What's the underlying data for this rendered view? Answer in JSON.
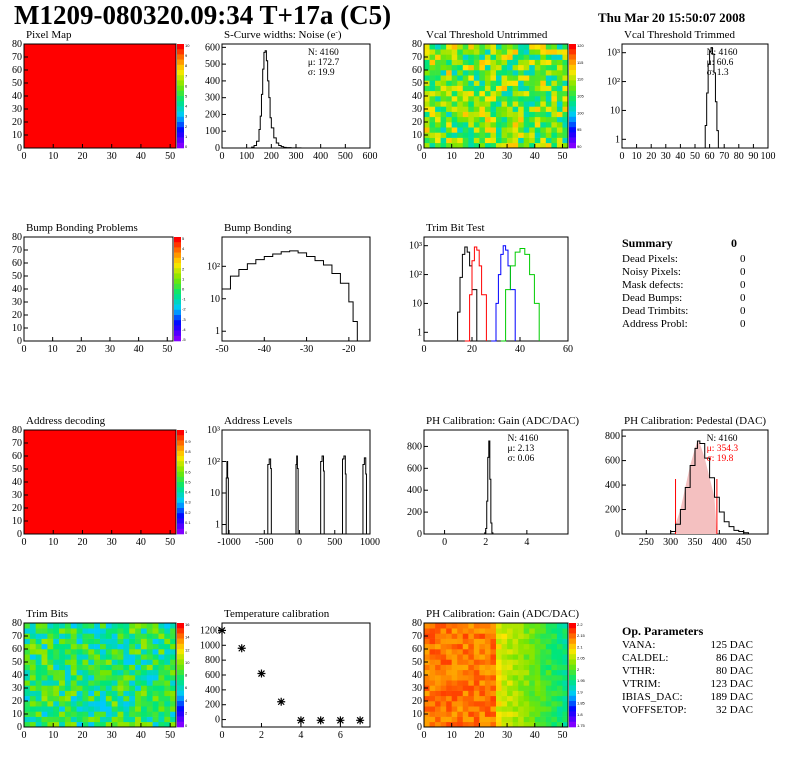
{
  "header": {
    "title": "M1209-080320.09:34 T+17a (C5)",
    "date": "Thu Mar 20 15:50:07 2008"
  },
  "chart_data": [
    {
      "id": "pixel-map",
      "type": "heatmap",
      "title": "Pixel Map",
      "xlim": [
        0,
        52
      ],
      "ylim": [
        0,
        80
      ],
      "xticks": [
        "0",
        "10",
        "20",
        "30",
        "40",
        "50"
      ],
      "yticks": [
        "0",
        "10",
        "20",
        "30",
        "40",
        "50",
        "60",
        "70",
        "80"
      ],
      "fill": "uniform",
      "fill_color": "#ff0000",
      "palette_labels": [
        "10",
        "9",
        "8",
        "7",
        "6",
        "5",
        "4",
        "3",
        "2",
        "1",
        "0"
      ]
    },
    {
      "id": "scurve-widths",
      "type": "line",
      "title": "S-Curve widths: Noise (e",
      "title_suffix": ")",
      "xlim": [
        0,
        600
      ],
      "ylim": [
        0,
        620
      ],
      "xticks": [
        "0",
        "100",
        "200",
        "300",
        "400",
        "500",
        "600"
      ],
      "yticks": [
        "0",
        "100",
        "200",
        "300",
        "400",
        "500",
        "600"
      ],
      "stats": [
        "N: 4160",
        "μ: 172.7",
        "σ: 19.9"
      ],
      "series": [
        {
          "color": "#000000",
          "x": [
            100,
            120,
            130,
            140,
            150,
            155,
            160,
            165,
            170,
            175,
            180,
            185,
            190,
            195,
            200,
            210,
            220,
            230,
            240,
            250,
            260,
            280,
            300,
            320
          ],
          "values": [
            0,
            5,
            15,
            40,
            110,
            190,
            320,
            470,
            570,
            580,
            520,
            400,
            300,
            180,
            120,
            60,
            30,
            15,
            8,
            4,
            2,
            1,
            1,
            0
          ]
        }
      ]
    },
    {
      "id": "vcal-untrimmed",
      "type": "heatmap",
      "title": "Vcal Threshold Untrimmed",
      "xlim": [
        0,
        52
      ],
      "ylim": [
        0,
        80
      ],
      "xticks": [
        "0",
        "10",
        "20",
        "30",
        "40",
        "50"
      ],
      "yticks": [
        "0",
        "10",
        "20",
        "30",
        "40",
        "50",
        "60",
        "70",
        "80"
      ],
      "fill": "noise",
      "palette_labels": [
        "120",
        "115",
        "110",
        "105",
        "100",
        "95",
        "90"
      ]
    },
    {
      "id": "vcal-trimmed",
      "type": "line",
      "title": "Vcal Threshold Trimmed",
      "xlim": [
        0,
        100
      ],
      "ylog": true,
      "ylim": [
        0.5,
        2000
      ],
      "xticks": [
        "0",
        "10",
        "20",
        "30",
        "40",
        "50",
        "60",
        "70",
        "80",
        "90",
        "100"
      ],
      "yticks": [
        "1",
        "10",
        "10²",
        "10³"
      ],
      "stats": [
        "N: 4160",
        "μ: 60.6",
        "σ:  1.3"
      ],
      "series": [
        {
          "color": "#000000",
          "x": [
            56,
            57,
            58,
            59,
            60,
            61,
            62,
            63,
            64,
            65,
            66
          ],
          "values": [
            0.5,
            3,
            40,
            400,
            1100,
            1500,
            900,
            200,
            20,
            2,
            0.5
          ]
        }
      ]
    },
    {
      "id": "bump-problems",
      "type": "heatmap",
      "title": "Bump Bonding Problems",
      "xlim": [
        0,
        52
      ],
      "ylim": [
        0,
        80
      ],
      "xticks": [
        "0",
        "10",
        "20",
        "30",
        "40",
        "50"
      ],
      "yticks": [
        "0",
        "10",
        "20",
        "30",
        "40",
        "50",
        "60",
        "70",
        "80"
      ],
      "fill": "empty",
      "palette_labels": [
        "5",
        "4",
        "3",
        "2",
        "1",
        "0",
        "-1",
        "-2",
        "-3",
        "-4",
        "-5"
      ]
    },
    {
      "id": "bump-bonding",
      "type": "line",
      "title": "Bump Bonding",
      "xlim": [
        -50,
        -15
      ],
      "ylog": true,
      "ylim": [
        0.5,
        800
      ],
      "xticks": [
        "-50",
        "-40",
        "-30",
        "-20"
      ],
      "yticks": [
        "1",
        "10",
        "10²"
      ],
      "series": [
        {
          "color": "#000000",
          "x": [
            -50,
            -48,
            -46,
            -44,
            -42,
            -40,
            -38,
            -36,
            -34,
            -32,
            -30,
            -28,
            -26,
            -24,
            -22,
            -20,
            -19,
            -18
          ],
          "values": [
            20,
            50,
            80,
            120,
            160,
            200,
            240,
            280,
            300,
            260,
            200,
            150,
            110,
            60,
            30,
            8,
            2,
            0.5
          ]
        }
      ]
    },
    {
      "id": "trim-bit-test",
      "type": "line",
      "title": "Trim Bit Test",
      "xlim": [
        0,
        60
      ],
      "ylog": true,
      "ylim": [
        0.5,
        2000
      ],
      "xticks": [
        "0",
        "20",
        "40",
        "60"
      ],
      "yticks": [
        "1",
        "10",
        "10²",
        "10³"
      ],
      "series": [
        {
          "color": "#000000",
          "x": [
            12,
            14,
            15,
            16,
            17,
            18,
            19,
            20,
            22
          ],
          "values": [
            0.5,
            5,
            80,
            500,
            900,
            600,
            200,
            30,
            0.5
          ]
        },
        {
          "color": "#ff0000",
          "x": [
            17,
            19,
            20,
            21,
            22,
            23,
            24,
            26
          ],
          "values": [
            0.5,
            20,
            300,
            900,
            700,
            200,
            20,
            0.5
          ]
        },
        {
          "color": "#0000ff",
          "x": [
            28,
            30,
            31,
            32,
            33,
            34,
            35,
            36,
            38
          ],
          "values": [
            0.5,
            10,
            100,
            500,
            1000,
            700,
            200,
            30,
            0.5
          ]
        },
        {
          "color": "#00cc00",
          "x": [
            32,
            34,
            36,
            38,
            40,
            42,
            44,
            46,
            48
          ],
          "values": [
            0.5,
            30,
            200,
            600,
            800,
            500,
            100,
            10,
            0.5
          ]
        }
      ]
    },
    {
      "id": "address-decoding",
      "type": "heatmap",
      "title": "Address decoding",
      "xlim": [
        0,
        52
      ],
      "ylim": [
        0,
        80
      ],
      "xticks": [
        "0",
        "10",
        "20",
        "30",
        "40",
        "50"
      ],
      "yticks": [
        "0",
        "10",
        "20",
        "30",
        "40",
        "50",
        "60",
        "70",
        "80"
      ],
      "fill": "uniform",
      "fill_color": "#ff0000",
      "palette_labels": [
        "1",
        "0.9",
        "0.8",
        "0.7",
        "0.6",
        "0.5",
        "0.4",
        "0.3",
        "0.2",
        "0.1",
        "0"
      ]
    },
    {
      "id": "address-levels",
      "type": "line",
      "title": "Address Levels",
      "xlim": [
        -1100,
        1000
      ],
      "ylog": true,
      "ylim": [
        0.5,
        1000
      ],
      "xticks": [
        "-1000",
        "-500",
        "0",
        "500",
        "1000"
      ],
      "yticks": [
        "1",
        "10",
        "10²",
        "10³"
      ],
      "series": [
        {
          "color": "#000000",
          "x": [
            -1050,
            -1040,
            -1030,
            -1020,
            -1010,
            -1000,
            -460,
            -450,
            -430,
            -410,
            -400,
            -60,
            -50,
            -40,
            -30,
            -20,
            290,
            300,
            320,
            340,
            350,
            600,
            610,
            630,
            650,
            660,
            880,
            900,
            920,
            940,
            950
          ],
          "values": [
            0.5,
            30,
            100,
            30,
            0.5,
            0.5,
            0.5,
            80,
            120,
            60,
            0.5,
            0.5,
            80,
            150,
            60,
            0.5,
            0.5,
            100,
            150,
            50,
            0.5,
            0.5,
            120,
            150,
            40,
            0.5,
            0.5,
            80,
            130,
            40,
            0.5
          ]
        }
      ]
    },
    {
      "id": "ph-gain",
      "type": "line",
      "title": "PH Calibration: Gain (ADC/DAC)",
      "xlim": [
        -1,
        6
      ],
      "ylim": [
        0,
        950
      ],
      "xticks": [
        "0",
        "2",
        "4"
      ],
      "yticks": [
        "0",
        "200",
        "400",
        "600",
        "800"
      ],
      "stats": [
        "N: 4160",
        "μ: 2.13",
        "σ: 0.06"
      ],
      "series": [
        {
          "color": "#000000",
          "x": [
            1.9,
            1.95,
            2.0,
            2.05,
            2.1,
            2.15,
            2.2,
            2.25,
            2.3,
            2.35
          ],
          "values": [
            0,
            10,
            50,
            300,
            700,
            850,
            500,
            100,
            10,
            0
          ]
        }
      ]
    },
    {
      "id": "ph-pedestal",
      "type": "line",
      "title": "PH Calibration: Pedestal (DAC)",
      "xlim": [
        200,
        500
      ],
      "ylim": [
        0,
        850
      ],
      "xticks": [
        "250",
        "300",
        "350",
        "400",
        "450"
      ],
      "yticks": [
        "0",
        "200",
        "400",
        "600",
        "800"
      ],
      "stats": [
        "N: 4160",
        "μ: 354.3",
        "σ: 19.8"
      ],
      "stat_colors": [
        "#000000",
        "#ff0000",
        "#ff0000"
      ],
      "fit_range": [
        310,
        395
      ],
      "series": [
        {
          "color": "#000000",
          "x": [
            290,
            300,
            310,
            320,
            330,
            340,
            350,
            355,
            360,
            370,
            380,
            390,
            400,
            410,
            420,
            430,
            440,
            450,
            460
          ],
          "values": [
            0,
            20,
            80,
            200,
            380,
            560,
            700,
            760,
            740,
            620,
            460,
            300,
            180,
            100,
            60,
            30,
            20,
            10,
            0
          ]
        }
      ]
    },
    {
      "id": "trim-bits",
      "type": "heatmap",
      "title": "Trim Bits",
      "xlim": [
        0,
        52
      ],
      "ylim": [
        0,
        80
      ],
      "xticks": [
        "0",
        "10",
        "20",
        "30",
        "40",
        "50"
      ],
      "yticks": [
        "0",
        "10",
        "20",
        "30",
        "40",
        "50",
        "60",
        "70",
        "80"
      ],
      "fill": "noise-green",
      "palette_labels": [
        "16",
        "14",
        "12",
        "10",
        "8",
        "6",
        "4",
        "2",
        "0"
      ]
    },
    {
      "id": "temperature-calibration",
      "type": "scatter",
      "title": "Temperature calibration",
      "xlim": [
        0,
        7.5
      ],
      "ylim": [
        -100,
        1300
      ],
      "xticks": [
        "0",
        "2",
        "4",
        "6"
      ],
      "yticks": [
        "0",
        "200",
        "400",
        "600",
        "800",
        "1000",
        "1200"
      ],
      "x": [
        0,
        1,
        2,
        3,
        4,
        5,
        6,
        7
      ],
      "values": [
        1200,
        960,
        620,
        240,
        -10,
        -10,
        -10,
        -10
      ]
    },
    {
      "id": "ph-gain-map",
      "type": "heatmap",
      "title": "PH Calibration: Gain (ADC/DAC)",
      "xlim": [
        0,
        52
      ],
      "ylim": [
        0,
        80
      ],
      "xticks": [
        "0",
        "10",
        "20",
        "30",
        "40",
        "50"
      ],
      "yticks": [
        "0",
        "10",
        "20",
        "30",
        "40",
        "50",
        "60",
        "70",
        "80"
      ],
      "fill": "gradient",
      "palette_labels": [
        "2.2",
        "2.15",
        "2.1",
        "2.05",
        "2",
        "1.95",
        "1.9",
        "1.85",
        "1.8",
        "1.75"
      ]
    }
  ],
  "summary": {
    "title": "Summary",
    "total": "0",
    "rows": [
      {
        "label": "Dead Pixels:",
        "value": "0"
      },
      {
        "label": "Noisy Pixels:",
        "value": "0"
      },
      {
        "label": "Mask defects:",
        "value": "0"
      },
      {
        "label": "Dead Bumps:",
        "value": "0"
      },
      {
        "label": "Dead Trimbits:",
        "value": "0"
      },
      {
        "label": "Address Probl:",
        "value": "0"
      }
    ]
  },
  "op_parameters": {
    "title": "Op. Parameters",
    "rows": [
      {
        "label": "VANA:",
        "value": "125 DAC"
      },
      {
        "label": "CALDEL:",
        "value": "86 DAC"
      },
      {
        "label": "VTHR:",
        "value": "80 DAC"
      },
      {
        "label": "VTRIM:",
        "value": "123 DAC"
      },
      {
        "label": "IBIAS_DAC:",
        "value": "189 DAC"
      },
      {
        "label": "VOFFSETOP:",
        "value": "32 DAC"
      }
    ]
  }
}
